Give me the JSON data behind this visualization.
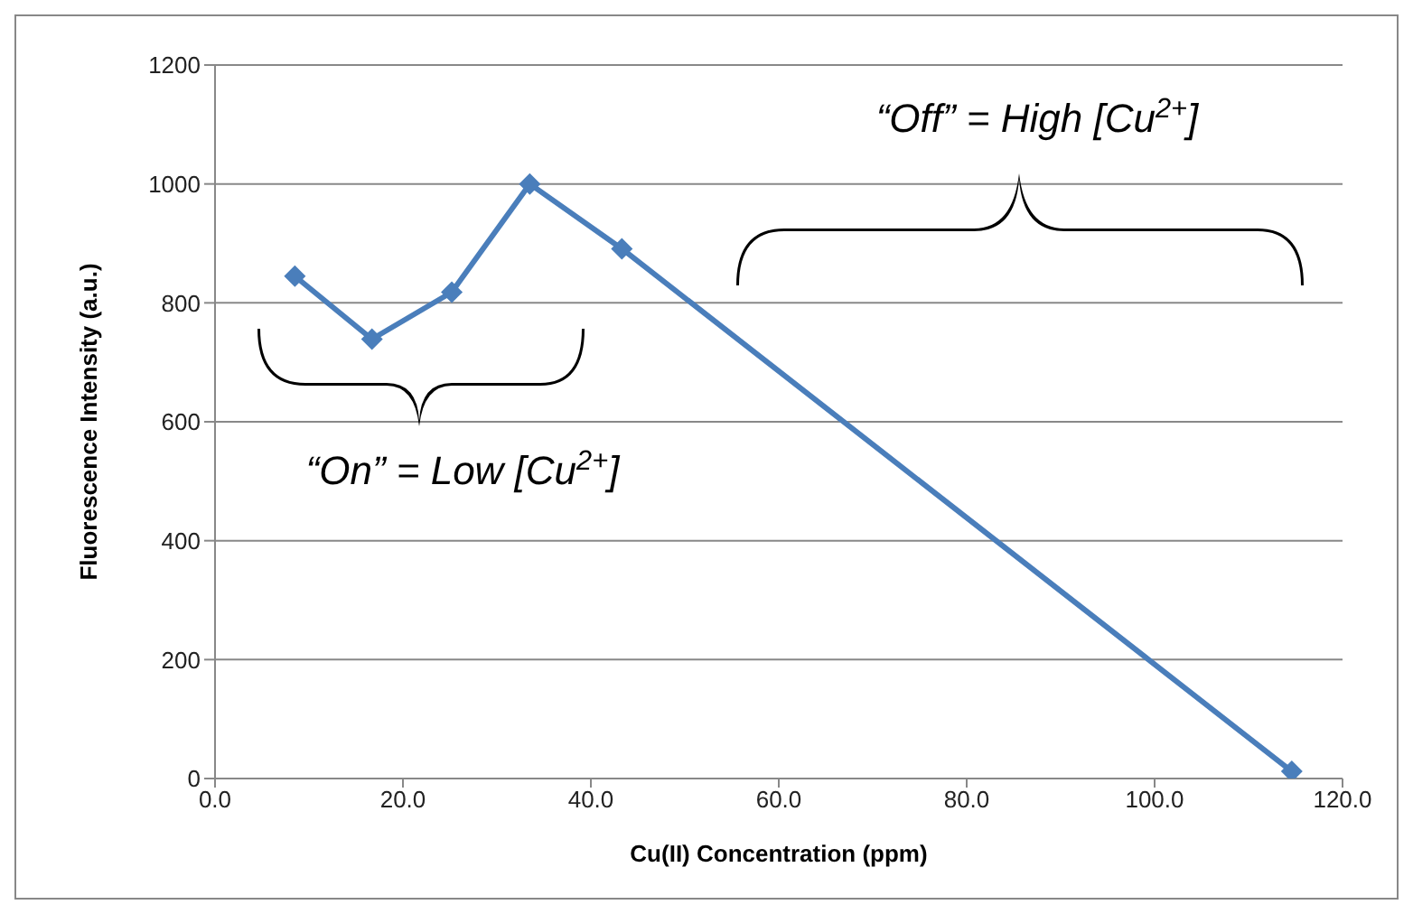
{
  "chart_data": {
    "type": "line",
    "xlabel": "Cu(II) Concentration (ppm)",
    "ylabel": "Fluorescence Intensity (a.u.)",
    "x": [
      8.5,
      16.7,
      25.2,
      33.5,
      43.3,
      114.6
    ],
    "series": [
      {
        "color": "#4a7ebb",
        "values": [
          845,
          739,
          818,
          1000,
          891,
          12
        ]
      }
    ],
    "xlim": [
      0,
      120
    ],
    "xticks": [
      {
        "value": 0,
        "label": "0.0"
      },
      {
        "value": 20,
        "label": "20.0"
      },
      {
        "value": 40,
        "label": "40.0"
      },
      {
        "value": 60,
        "label": "60.0"
      },
      {
        "value": 80,
        "label": "80.0"
      },
      {
        "value": 100,
        "label": "100.0"
      },
      {
        "value": 120,
        "label": "120.0"
      }
    ],
    "ylim": [
      0,
      1200
    ],
    "yticks": [
      0,
      200,
      400,
      600,
      800,
      1000,
      1200
    ],
    "grid": "y",
    "marker": "diamond",
    "line_style": "solid",
    "legend": false,
    "annotations": [
      "“On” = Low [Cu$^{2+}$]",
      "“Off” = High [Cu$^{2+}$]"
    ]
  }
}
